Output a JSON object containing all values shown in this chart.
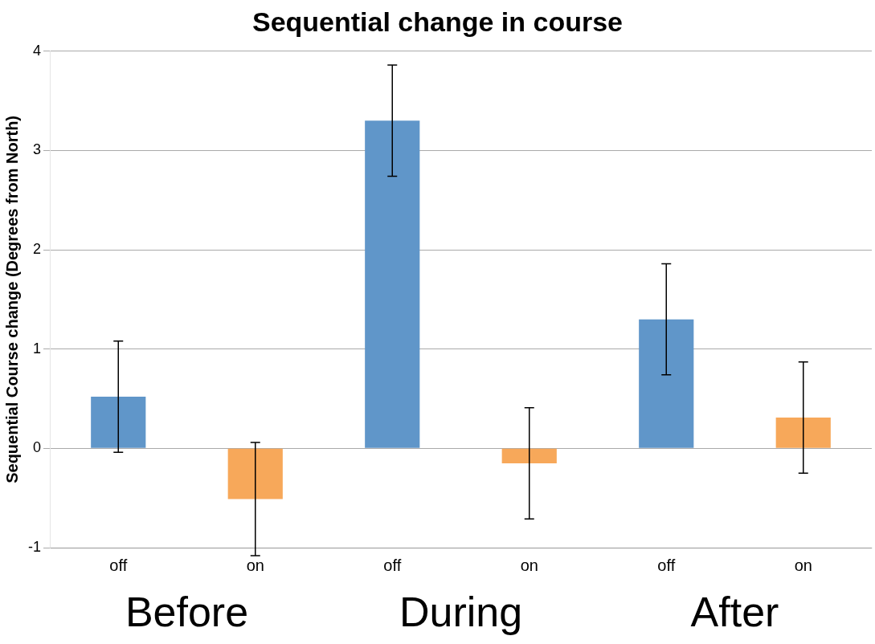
{
  "chart_data": {
    "type": "bar",
    "title": "Sequential change in course",
    "ylabel": "Sequential Course change (Degrees from North)",
    "categories": [
      "off",
      "on",
      "off",
      "on",
      "off",
      "on"
    ],
    "values": [
      0.52,
      -0.51,
      3.3,
      -0.15,
      1.3,
      0.31
    ],
    "errors": [
      0.56,
      0.57,
      0.56,
      0.56,
      0.56,
      0.56
    ],
    "colors": [
      "#6096c9",
      "#f7a85a",
      "#6096c9",
      "#f7a85a",
      "#6096c9",
      "#f7a85a"
    ],
    "ylim": [
      -1,
      4
    ],
    "yticks": [
      -1,
      0,
      1,
      2,
      3,
      4
    ],
    "grid": "y",
    "legend": false,
    "annotations": [
      "Before",
      "During",
      "After"
    ]
  }
}
